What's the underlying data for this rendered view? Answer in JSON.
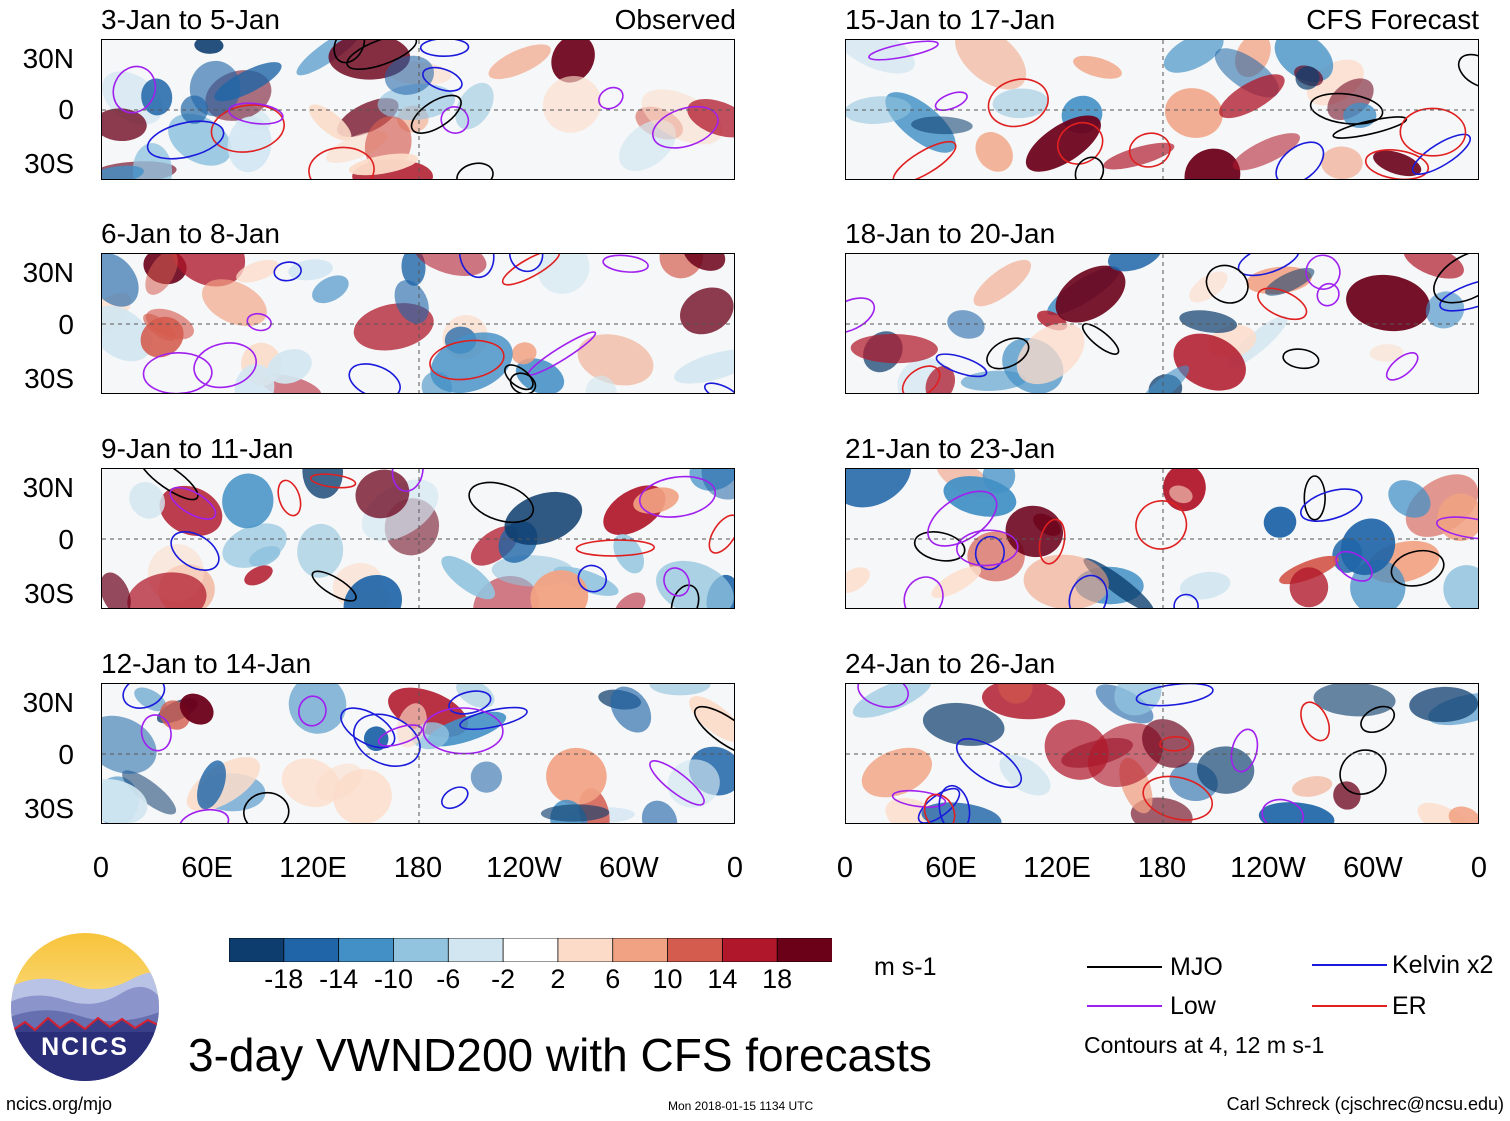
{
  "title": "3-day VWND200 with CFS forecasts",
  "observed_label": "Observed",
  "forecast_label": "CFS Forecast",
  "panels_left": [
    {
      "title": "3-Jan to 5-Jan"
    },
    {
      "title": "6-Jan to 8-Jan"
    },
    {
      "title": "9-Jan to 11-Jan"
    },
    {
      "title": "12-Jan to 14-Jan"
    }
  ],
  "panels_right": [
    {
      "title": "15-Jan to 17-Jan"
    },
    {
      "title": "18-Jan to 20-Jan"
    },
    {
      "title": "21-Jan to 23-Jan"
    },
    {
      "title": "24-Jan to 26-Jan"
    }
  ],
  "lat_labels": [
    "30N",
    "0",
    "30S"
  ],
  "lon_labels": [
    "0",
    "60E",
    "120E",
    "180",
    "120W",
    "60W",
    "0"
  ],
  "colorbar": {
    "unit": "m s-1",
    "colors": [
      "#0c3d6e",
      "#1f65a8",
      "#4390c6",
      "#92c4df",
      "#d2e6f1",
      "#ffffff",
      "#fcdcc9",
      "#f1a283",
      "#d45c4f",
      "#b0172a",
      "#6b0019"
    ],
    "ticks": [
      "-18",
      "-14",
      "-10",
      "-6",
      "-2",
      "2",
      "6",
      "10",
      "14",
      "18"
    ]
  },
  "legend": {
    "items": [
      {
        "label": "MJO",
        "color": "#000000"
      },
      {
        "label": "Kelvin x2",
        "color": "#1a1adc"
      },
      {
        "label": "Low",
        "color": "#a020f0"
      },
      {
        "label": "ER",
        "color": "#e02020"
      }
    ],
    "note": "Contours at 4, 12 m s-1"
  },
  "logo_text": "NCICS",
  "footer": {
    "left": "ncics.org/mjo",
    "center": "Mon 2018-01-15 1134 UTC",
    "right": "Carl Schreck (cjschrec@ncsu.edu)"
  }
}
